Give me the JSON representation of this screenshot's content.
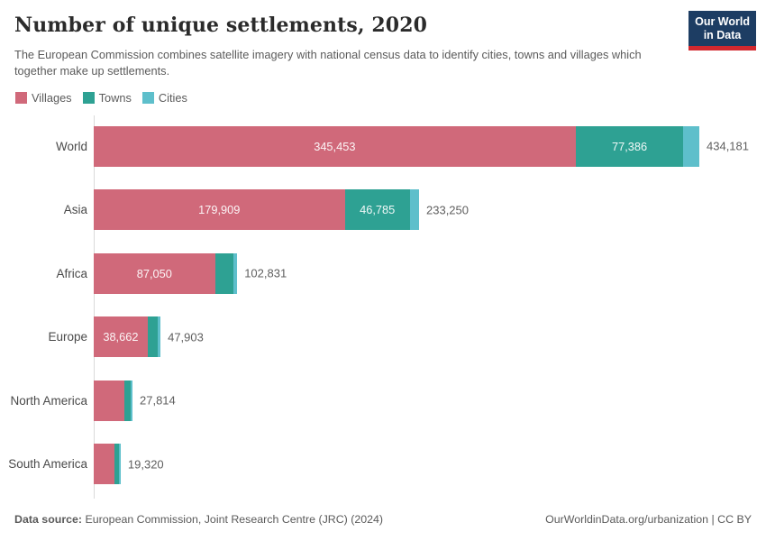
{
  "header": {
    "title": "Number of unique settlements, 2020",
    "subtitle": "The European Commission combines satellite imagery with national census data to identify cities, towns and villages which together make up settlements.",
    "logo": {
      "line1": "Our World",
      "line2": "in Data"
    }
  },
  "legend": [
    {
      "label": "Villages",
      "color": "#d0697a"
    },
    {
      "label": "Towns",
      "color": "#2ea193"
    },
    {
      "label": "Cities",
      "color": "#5ebfcb"
    }
  ],
  "chart_data": {
    "type": "bar",
    "orientation": "horizontal",
    "stacked": true,
    "title": "Number of unique settlements, 2020",
    "legend_position": "top",
    "categories": [
      "World",
      "Asia",
      "Africa",
      "Europe",
      "North America",
      "South America"
    ],
    "series": [
      {
        "name": "Villages",
        "color": "#d0697a",
        "values": [
          345453,
          179909,
          87050,
          38662,
          22100,
          15000
        ]
      },
      {
        "name": "Towns",
        "color": "#2ea193",
        "values": [
          77386,
          46785,
          12900,
          7100,
          4200,
          3100
        ]
      },
      {
        "name": "Cities",
        "color": "#5ebfcb",
        "values": [
          11342,
          6556,
          2881,
          2141,
          1514,
          1220
        ]
      }
    ],
    "totals": [
      434181,
      233250,
      102831,
      47903,
      27814,
      19320
    ],
    "total_labels": [
      "434,181",
      "233,250",
      "102,831",
      "47,903",
      "27,814",
      "19,320"
    ],
    "segment_labels": [
      [
        "345,453",
        "77,386",
        null
      ],
      [
        "179,909",
        "46,785",
        null
      ],
      [
        "87,050",
        null,
        null
      ],
      [
        "38,662",
        null,
        null
      ],
      [
        null,
        null,
        null
      ],
      [
        null,
        null,
        null
      ]
    ],
    "xlim": [
      0,
      434181
    ]
  },
  "footer": {
    "source_label": "Data source:",
    "source_rest": " European Commission, Joint Research Centre (JRC) (2024)",
    "link": "OurWorldinData.org/urbanization",
    "separator": " | ",
    "license": "CC BY"
  }
}
